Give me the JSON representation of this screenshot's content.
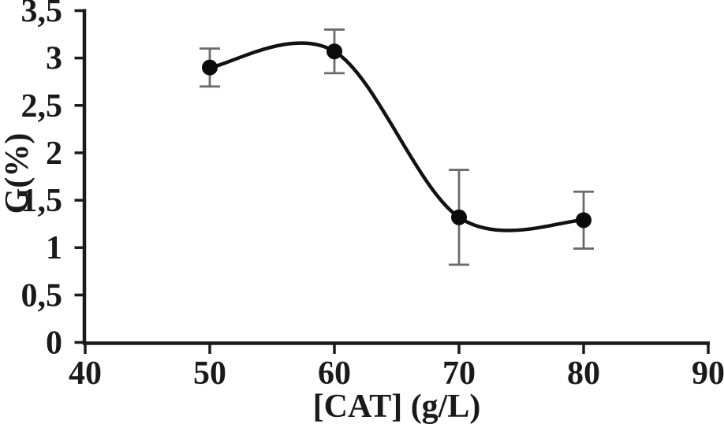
{
  "figure": {
    "background": "#ffffff"
  },
  "chart_data": {
    "type": "line",
    "title": "",
    "xlabel": "[CAT] (g/L)",
    "ylabel": "G(%)",
    "x": [
      50,
      60,
      70,
      80
    ],
    "series": [
      {
        "name": "G(%)",
        "values": [
          2.9,
          3.07,
          1.32,
          1.29
        ],
        "y_err": [
          0.2,
          0.23,
          0.5,
          0.3
        ]
      }
    ],
    "xlim": [
      40,
      90
    ],
    "ylim": [
      0,
      3.5
    ],
    "x_ticks": {
      "values": [
        40,
        50,
        60,
        70,
        80,
        90
      ],
      "labels": [
        "40",
        "50",
        "60",
        "70",
        "80",
        "90"
      ]
    },
    "y_ticks": {
      "values": [
        0,
        0.5,
        1,
        1.5,
        2,
        2.5,
        3,
        3.5
      ],
      "labels": [
        "0",
        "0,5",
        "1",
        "1,5",
        "2",
        "2,5",
        "3",
        "3,5"
      ]
    },
    "decimal_separator": ",",
    "grid": false,
    "legend": false,
    "smooth": true,
    "marker": "filled-circle",
    "colors": {
      "line": "#121212",
      "marker": "#0b0b0b",
      "error_bar": "#6b6b6b",
      "axis": "#1a1a1a",
      "text": "#1a1a1a"
    }
  }
}
